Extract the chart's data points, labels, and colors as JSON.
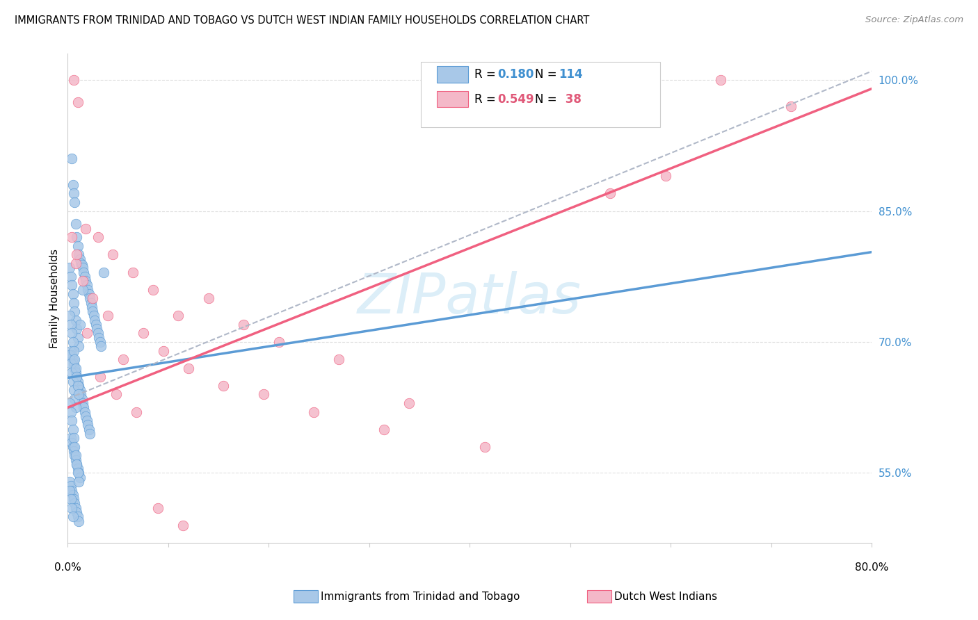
{
  "title": "IMMIGRANTS FROM TRINIDAD AND TOBAGO VS DUTCH WEST INDIAN FAMILY HOUSEHOLDS CORRELATION CHART",
  "source": "Source: ZipAtlas.com",
  "ylabel": "Family Households",
  "yaxis_labels": [
    "100.0%",
    "85.0%",
    "70.0%",
    "55.0%"
  ],
  "yaxis_values": [
    1.0,
    0.85,
    0.7,
    0.55
  ],
  "xaxis_ticks": [
    0.0,
    0.1,
    0.2,
    0.3,
    0.4,
    0.5,
    0.6,
    0.7,
    0.8
  ],
  "xlim": [
    0.0,
    0.8
  ],
  "ylim": [
    0.47,
    1.03
  ],
  "color_blue": "#a8c8e8",
  "color_pink": "#f4b8c8",
  "line_blue": "#5b9bd5",
  "line_pink": "#f06080",
  "color_blue_text": "#4090d0",
  "color_pink_text": "#e05878",
  "watermark_color": "#dceef8",
  "background_color": "#ffffff",
  "grid_color": "#e0e0e0",
  "blue_scatter_x": [
    0.004,
    0.005,
    0.006,
    0.007,
    0.008,
    0.009,
    0.01,
    0.011,
    0.012,
    0.013,
    0.014,
    0.015,
    0.016,
    0.017,
    0.018,
    0.019,
    0.02,
    0.021,
    0.022,
    0.023,
    0.024,
    0.025,
    0.026,
    0.027,
    0.028,
    0.029,
    0.03,
    0.031,
    0.032,
    0.033,
    0.003,
    0.004,
    0.005,
    0.006,
    0.007,
    0.008,
    0.009,
    0.01,
    0.011,
    0.012,
    0.013,
    0.014,
    0.015,
    0.016,
    0.017,
    0.018,
    0.019,
    0.02,
    0.021,
    0.022,
    0.003,
    0.004,
    0.005,
    0.006,
    0.007,
    0.008,
    0.009,
    0.01,
    0.011,
    0.012,
    0.002,
    0.003,
    0.004,
    0.005,
    0.006,
    0.007,
    0.008,
    0.009,
    0.01,
    0.011,
    0.002,
    0.003,
    0.004,
    0.005,
    0.006,
    0.007,
    0.008,
    0.009,
    0.01,
    0.011,
    0.002,
    0.003,
    0.004,
    0.005,
    0.006,
    0.007,
    0.008,
    0.036,
    0.012,
    0.015,
    0.002,
    0.003,
    0.004,
    0.005,
    0.006,
    0.007,
    0.008,
    0.009,
    0.01,
    0.011,
    0.002,
    0.003,
    0.004,
    0.005,
    0.006,
    0.007,
    0.008,
    0.009,
    0.01,
    0.011,
    0.002,
    0.003,
    0.004,
    0.005
  ],
  "blue_scatter_y": [
    0.91,
    0.88,
    0.87,
    0.86,
    0.835,
    0.82,
    0.81,
    0.8,
    0.795,
    0.79,
    0.788,
    0.785,
    0.78,
    0.775,
    0.77,
    0.765,
    0.76,
    0.755,
    0.75,
    0.745,
    0.74,
    0.735,
    0.73,
    0.725,
    0.72,
    0.715,
    0.71,
    0.705,
    0.7,
    0.695,
    0.69,
    0.685,
    0.68,
    0.675,
    0.67,
    0.665,
    0.66,
    0.655,
    0.65,
    0.645,
    0.64,
    0.635,
    0.63,
    0.625,
    0.62,
    0.615,
    0.61,
    0.605,
    0.6,
    0.595,
    0.59,
    0.585,
    0.58,
    0.575,
    0.57,
    0.565,
    0.56,
    0.555,
    0.55,
    0.545,
    0.54,
    0.535,
    0.53,
    0.525,
    0.52,
    0.515,
    0.51,
    0.505,
    0.5,
    0.495,
    0.785,
    0.775,
    0.765,
    0.755,
    0.745,
    0.735,
    0.725,
    0.715,
    0.705,
    0.695,
    0.685,
    0.675,
    0.665,
    0.655,
    0.645,
    0.635,
    0.625,
    0.78,
    0.72,
    0.76,
    0.73,
    0.72,
    0.71,
    0.7,
    0.69,
    0.68,
    0.67,
    0.66,
    0.65,
    0.64,
    0.63,
    0.62,
    0.61,
    0.6,
    0.59,
    0.58,
    0.57,
    0.56,
    0.55,
    0.54,
    0.53,
    0.52,
    0.51,
    0.5
  ],
  "pink_scatter_x": [
    0.006,
    0.01,
    0.018,
    0.03,
    0.045,
    0.065,
    0.085,
    0.11,
    0.14,
    0.175,
    0.21,
    0.27,
    0.34,
    0.54,
    0.65,
    0.008,
    0.015,
    0.025,
    0.04,
    0.055,
    0.075,
    0.095,
    0.12,
    0.155,
    0.195,
    0.245,
    0.315,
    0.415,
    0.595,
    0.72,
    0.004,
    0.009,
    0.019,
    0.032,
    0.048,
    0.068,
    0.09,
    0.115
  ],
  "pink_scatter_y": [
    1.0,
    0.975,
    0.83,
    0.82,
    0.8,
    0.78,
    0.76,
    0.73,
    0.75,
    0.72,
    0.7,
    0.68,
    0.63,
    0.87,
    1.0,
    0.79,
    0.77,
    0.75,
    0.73,
    0.68,
    0.71,
    0.69,
    0.67,
    0.65,
    0.64,
    0.62,
    0.6,
    0.58,
    0.89,
    0.97,
    0.82,
    0.8,
    0.71,
    0.66,
    0.64,
    0.62,
    0.51,
    0.49
  ],
  "blue_line_x": [
    0.0,
    0.8
  ],
  "blue_line_y": [
    0.659,
    0.803
  ],
  "pink_line_x": [
    0.0,
    0.8
  ],
  "pink_line_y": [
    0.625,
    0.99
  ],
  "dash_line_x": [
    0.0,
    0.8
  ],
  "dash_line_y": [
    0.635,
    1.01
  ]
}
